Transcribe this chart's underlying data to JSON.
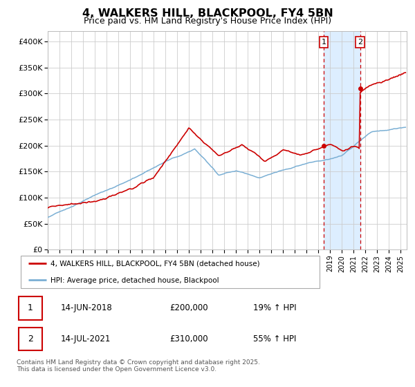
{
  "title": "4, WALKERS HILL, BLACKPOOL, FY4 5BN",
  "subtitle": "Price paid vs. HM Land Registry's House Price Index (HPI)",
  "background_color": "#ffffff",
  "plot_bg_color": "#ffffff",
  "grid_color": "#cccccc",
  "red_line_color": "#cc0000",
  "blue_line_color": "#7aafd4",
  "highlight_bg": "#ddeeff",
  "dashed_line_color": "#cc0000",
  "ylabel_ticks": [
    "£0",
    "£50K",
    "£100K",
    "£150K",
    "£200K",
    "£250K",
    "£300K",
    "£350K",
    "£400K"
  ],
  "ytick_values": [
    0,
    50000,
    100000,
    150000,
    200000,
    250000,
    300000,
    350000,
    400000
  ],
  "ylim": [
    0,
    420000
  ],
  "xlim_start": 1995.0,
  "xlim_end": 2025.5,
  "xtick_years": [
    1995,
    1996,
    1997,
    1998,
    1999,
    2000,
    2001,
    2002,
    2003,
    2004,
    2005,
    2006,
    2007,
    2008,
    2009,
    2010,
    2011,
    2012,
    2013,
    2014,
    2015,
    2016,
    2017,
    2018,
    2019,
    2020,
    2021,
    2022,
    2023,
    2024,
    2025
  ],
  "event1_x": 2018.45,
  "event2_x": 2021.54,
  "event1_price": 200000,
  "event2_price": 310000,
  "legend_line1": "4, WALKERS HILL, BLACKPOOL, FY4 5BN (detached house)",
  "legend_line2": "HPI: Average price, detached house, Blackpool",
  "table_row1": [
    "1",
    "14-JUN-2018",
    "£200,000",
    "19% ↑ HPI"
  ],
  "table_row2": [
    "2",
    "14-JUL-2021",
    "£310,000",
    "55% ↑ HPI"
  ],
  "footer": "Contains HM Land Registry data © Crown copyright and database right 2025.\nThis data is licensed under the Open Government Licence v3.0."
}
